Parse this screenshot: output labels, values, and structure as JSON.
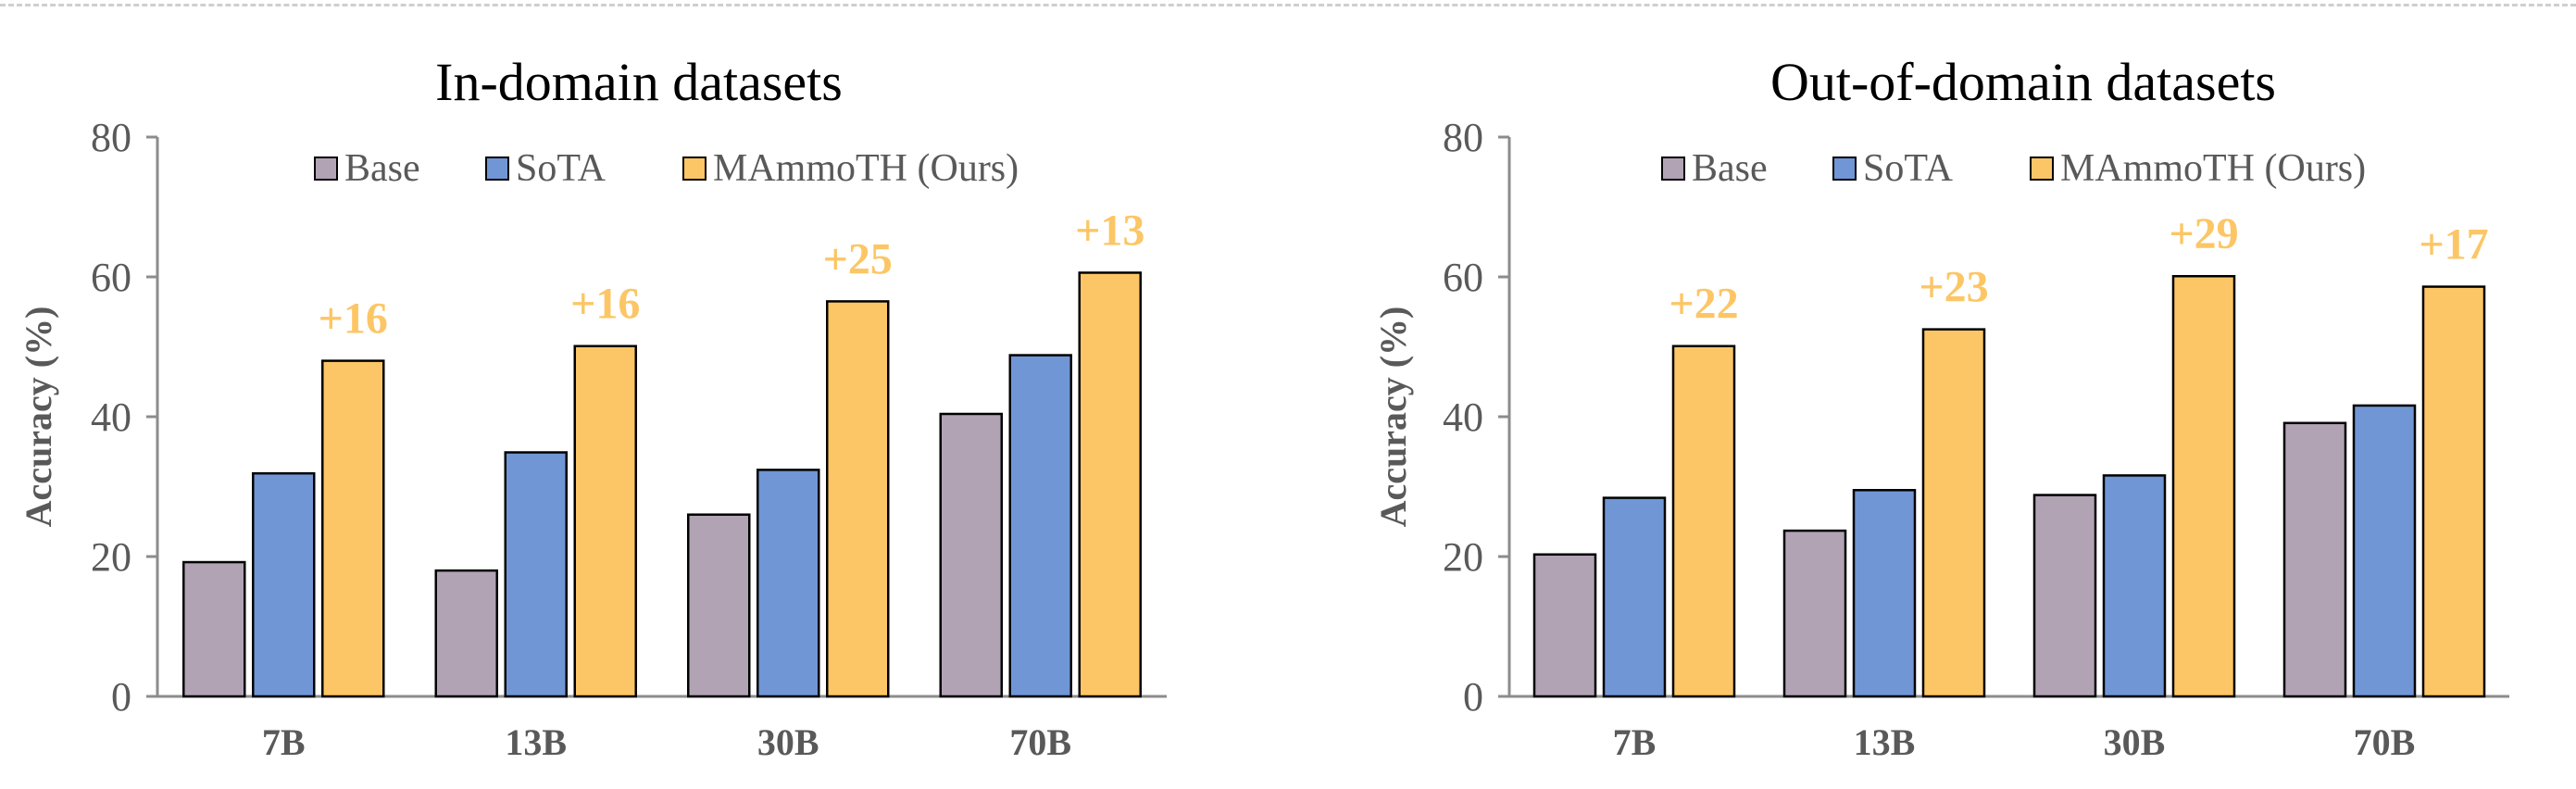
{
  "colors": {
    "base": "#B1A3B4",
    "sota": "#7096D5",
    "ours": "#FCC666",
    "gain_text": "#FCC666",
    "axis": "#8c8c8c"
  },
  "chart_data": [
    {
      "type": "bar",
      "title": "In-domain datasets",
      "xlabel": "",
      "ylabel": "Accuracy (%)",
      "ylim": [
        0,
        80
      ],
      "yticks": [
        "0",
        "20",
        "40",
        "60",
        "80"
      ],
      "categories": [
        "7B",
        "13B",
        "30B",
        "70B"
      ],
      "series": [
        {
          "name": "Base",
          "values": [
            19.2,
            18.0,
            26.0,
            40.4
          ]
        },
        {
          "name": "SoTA",
          "values": [
            31.9,
            34.9,
            32.4,
            48.8
          ]
        },
        {
          "name": "MAmmoTH (Ours)",
          "values": [
            48.0,
            50.1,
            56.5,
            60.6
          ]
        }
      ],
      "annotations": [
        "+16",
        "+16",
        "+25",
        "+13"
      ],
      "legend_position": "top"
    },
    {
      "type": "bar",
      "title": "Out-of-domain datasets",
      "xlabel": "",
      "ylabel": "Accuracy (%)",
      "ylim": [
        0,
        80
      ],
      "yticks": [
        "0",
        "20",
        "40",
        "60",
        "80"
      ],
      "categories": [
        "7B",
        "13B",
        "30B",
        "70B"
      ],
      "series": [
        {
          "name": "Base",
          "values": [
            20.3,
            23.7,
            28.8,
            39.1
          ]
        },
        {
          "name": "SoTA",
          "values": [
            28.4,
            29.5,
            31.6,
            41.6
          ]
        },
        {
          "name": "MAmmoTH (Ours)",
          "values": [
            50.1,
            52.5,
            60.1,
            58.6
          ]
        }
      ],
      "annotations": [
        "+22",
        "+23",
        "+29",
        "+17"
      ],
      "legend_position": "top"
    }
  ]
}
